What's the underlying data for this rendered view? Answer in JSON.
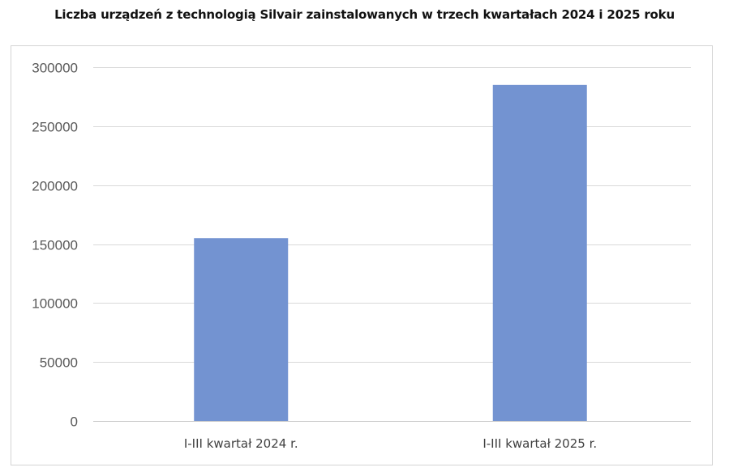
{
  "title": "Liczba urządzeń z technologią Silvair zainstalowanych w trzech kwartałach 2024 i 2025 roku",
  "colors": {
    "bar": "#7393d1",
    "grid": "#d9d9d9",
    "text": "#595959"
  },
  "chart_data": {
    "type": "bar",
    "title": "Liczba urządzeń z technologią Silvair zainstalowanych w trzech kwartałach 2024 i 2025 roku",
    "categories": [
      "I-III kwartał 2024 r.",
      "I-III kwartał 2025 r."
    ],
    "values": [
      155000,
      285000
    ],
    "xlabel": "",
    "ylabel": "",
    "ylim": [
      0,
      300000
    ],
    "yticks": [
      0,
      50000,
      100000,
      150000,
      200000,
      250000,
      300000
    ],
    "ytick_labels": [
      "0",
      "50000",
      "100000",
      "150000",
      "200000",
      "250000",
      "300000"
    ],
    "grid": true,
    "legend": "none"
  }
}
